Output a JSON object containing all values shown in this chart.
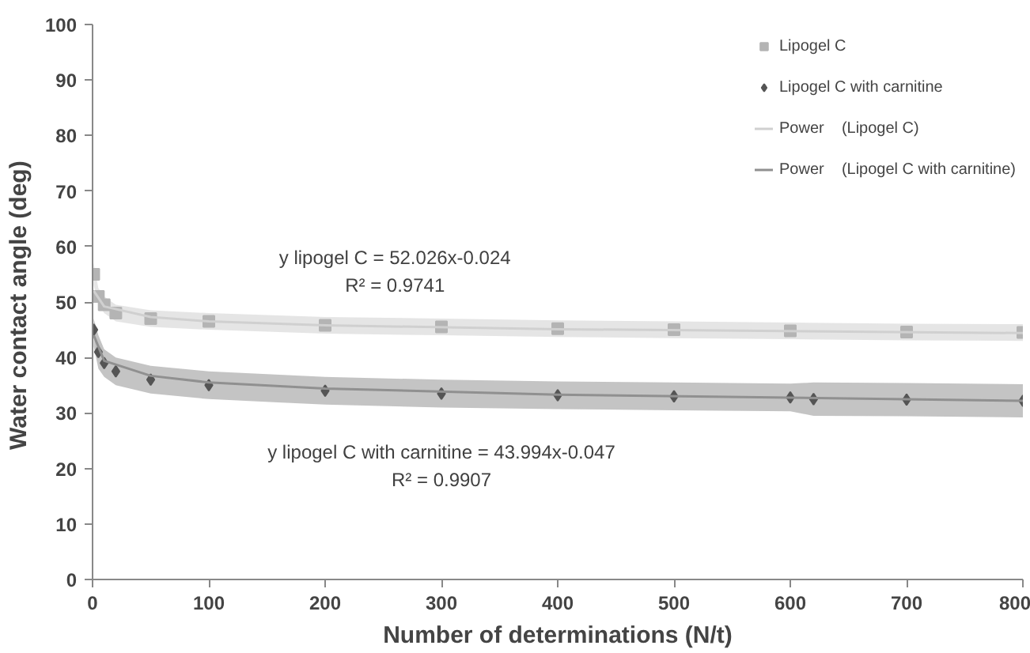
{
  "chart_data": {
    "type": "scatter",
    "xlabel": "Number of determinations (N/t)",
    "ylabel": "Water contact angle  (deg)",
    "xlim": [
      0,
      800
    ],
    "ylim": [
      0,
      100
    ],
    "xticks": [
      0,
      100,
      200,
      300,
      400,
      500,
      600,
      700,
      800
    ],
    "yticks": [
      0,
      10,
      20,
      30,
      40,
      50,
      60,
      70,
      80,
      90,
      100
    ],
    "grid": false,
    "legend": "top right",
    "series": [
      {
        "name": "Lipogel C",
        "marker": "square",
        "color": "#b4b4b4",
        "x": [
          1,
          5,
          10,
          20,
          50,
          100,
          200,
          300,
          400,
          500,
          600,
          700,
          800
        ],
        "values": [
          55,
          51,
          49.5,
          48,
          47,
          46.5,
          45.8,
          45.5,
          45.2,
          45,
          44.8,
          44.6,
          44.5
        ],
        "lower": [
          53,
          49.5,
          48,
          46.5,
          45.5,
          45,
          44.3,
          44,
          43.7,
          43.5,
          43.3,
          43.1,
          43
        ],
        "upper": [
          57,
          52.5,
          51,
          49.5,
          48.5,
          48,
          47.3,
          47,
          46.7,
          46.5,
          46.3,
          46.1,
          46
        ]
      },
      {
        "name": "Lipogel C with carnitine",
        "marker": "diamond",
        "color": "#555555",
        "x": [
          1,
          5,
          10,
          20,
          50,
          100,
          200,
          300,
          400,
          500,
          600,
          620,
          700,
          800
        ],
        "values": [
          45,
          41,
          39,
          37.5,
          36,
          35,
          34,
          33.5,
          33.2,
          33,
          32.8,
          32.5,
          32.4,
          32.2
        ],
        "lower": [
          42,
          38,
          36.5,
          35,
          33.5,
          32.5,
          31.5,
          31,
          30.7,
          30.5,
          30.3,
          29.5,
          29.4,
          29.2
        ],
        "upper": [
          47,
          44,
          41.5,
          40,
          38.5,
          37.5,
          36.5,
          36,
          35.7,
          35.5,
          35.3,
          35.5,
          35.4,
          35.2
        ]
      },
      {
        "name": "Power    (Lipogel C)",
        "type": "line",
        "marker": "none",
        "color": "#d0d0d0",
        "x": [
          1,
          10,
          50,
          100,
          200,
          400,
          800
        ],
        "values": [
          52.0,
          49.2,
          47.3,
          46.5,
          45.8,
          45.1,
          44.4
        ]
      },
      {
        "name": "Power    (Lipogel C with carnitine)",
        "type": "line",
        "marker": "none",
        "color": "#909090",
        "x": [
          1,
          10,
          50,
          100,
          200,
          400,
          800
        ],
        "values": [
          44.0,
          39.4,
          36.7,
          35.5,
          34.4,
          33.3,
          32.2
        ]
      }
    ],
    "annotations": [
      "y lipogel C = 52.026x-0.024",
      "R² = 0.9741",
      "y lipogel C with carnitine = 43.994x-0.047",
      "R² = 0.9907"
    ]
  }
}
